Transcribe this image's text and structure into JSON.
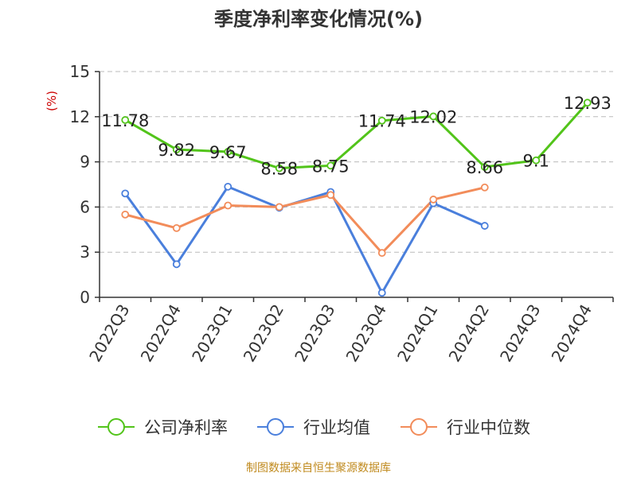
{
  "chart_data": {
    "type": "line",
    "title": "季度净利率变化情况(%)",
    "ylabel": "(%)",
    "xlabel": "",
    "categories": [
      "2022Q3",
      "2022Q4",
      "2023Q1",
      "2023Q2",
      "2023Q3",
      "2023Q4",
      "2024Q1",
      "2024Q2",
      "2024Q3",
      "2024Q4"
    ],
    "ylim": [
      0,
      15
    ],
    "yticks": [
      0,
      3,
      6,
      9,
      12,
      15
    ],
    "grid": true,
    "legend_position": "bottom",
    "series": [
      {
        "name": "公司净利率",
        "color": "#52c41a",
        "values": [
          11.78,
          9.82,
          9.67,
          8.58,
          8.75,
          11.74,
          12.02,
          8.66,
          9.1,
          12.93
        ],
        "labels": [
          "11.78",
          "9.82",
          "9.67",
          "8.58",
          "8.75",
          "11.74",
          "12.02",
          "8.66",
          "9.1",
          "12.93"
        ]
      },
      {
        "name": "行业均值",
        "color": "#4a7fdc",
        "values": [
          6.9,
          2.2,
          7.35,
          5.95,
          7.0,
          0.3,
          6.25,
          4.75,
          null,
          null
        ]
      },
      {
        "name": "行业中位数",
        "color": "#f28c5a",
        "values": [
          5.5,
          4.6,
          6.1,
          6.0,
          6.8,
          2.95,
          6.5,
          7.3,
          null,
          null
        ]
      }
    ]
  },
  "source": "制图数据来自恒生聚源数据库"
}
